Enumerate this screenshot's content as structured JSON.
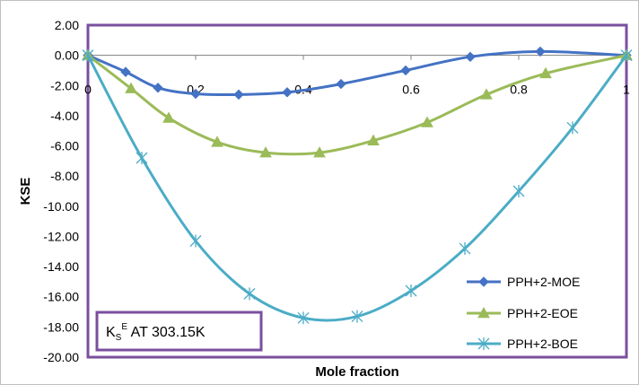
{
  "chart_data": {
    "type": "line",
    "title": "",
    "xlabel": "Mole fraction",
    "ylabel": "KSE",
    "xlim": [
      0,
      1
    ],
    "ylim": [
      -20,
      2
    ],
    "x_ticks": [
      0,
      0.2,
      0.4,
      0.6,
      0.8,
      1
    ],
    "x_tick_labels": [
      "0",
      "0.2",
      "0.4",
      "0.6",
      "0.8",
      "1"
    ],
    "y_ticks": [
      2,
      0,
      -2,
      -4,
      -6,
      -8,
      -10,
      -12,
      -14,
      -16,
      -18,
      -20
    ],
    "y_tick_labels": [
      "2.00",
      "0.00",
      "-2.00",
      "-4.00",
      "-6.00",
      "-8.00",
      "-10.00",
      "-12.00",
      "-14.00",
      "-16.00",
      "-18.00",
      "-20.00"
    ],
    "grid": false,
    "legend_position": "bottom-right",
    "annotation": {
      "main": "K",
      "sub": "S",
      "sup": "E",
      "rest": " AT 303.15K"
    },
    "series": [
      {
        "name": "PPH+2-MOE",
        "color": "#4472C4",
        "marker": "diamond",
        "x": [
          0,
          0.07,
          0.13,
          0.2,
          0.28,
          0.37,
          0.47,
          0.59,
          0.71,
          0.84,
          1
        ],
        "y": [
          0,
          -1.1,
          -2.15,
          -2.55,
          -2.6,
          -2.45,
          -1.9,
          -1.0,
          -0.1,
          0.25,
          0
        ]
      },
      {
        "name": "PPH+2-EOE",
        "color": "#9BBB59",
        "marker": "triangle",
        "x": [
          0,
          0.08,
          0.15,
          0.24,
          0.33,
          0.43,
          0.53,
          0.63,
          0.74,
          0.85,
          1
        ],
        "y": [
          0,
          -2.2,
          -4.15,
          -5.75,
          -6.45,
          -6.45,
          -5.65,
          -4.45,
          -2.6,
          -1.2,
          0
        ]
      },
      {
        "name": "PPH+2-BOE",
        "color": "#4BACC6",
        "marker": "star",
        "x": [
          0,
          0.1,
          0.2,
          0.3,
          0.4,
          0.5,
          0.6,
          0.7,
          0.8,
          0.9,
          1
        ],
        "y": [
          0,
          -6.8,
          -12.3,
          -15.8,
          -17.4,
          -17.3,
          -15.6,
          -12.8,
          -9.0,
          -4.8,
          0
        ]
      }
    ]
  }
}
